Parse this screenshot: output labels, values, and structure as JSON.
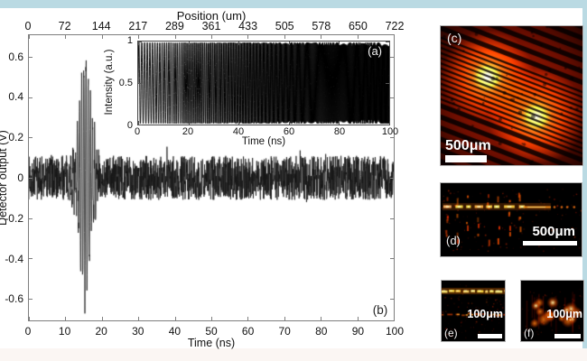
{
  "page": {
    "top_band_color": "#badae3",
    "right_band_color": "#badae3",
    "bottom_band_color": "#fbf6f3"
  },
  "figure": {
    "top_axis": {
      "title": "Position (um)",
      "tick_labels": [
        "0",
        "72",
        "144",
        "217",
        "289",
        "361",
        "433",
        "505",
        "578",
        "650",
        "722"
      ]
    },
    "main_plot": {
      "panel_label": "(b)",
      "xlabel": "Time (ns)",
      "ylabel": "Detector output (V)",
      "x_tick_labels": [
        "0",
        "10",
        "20",
        "30",
        "40",
        "50",
        "60",
        "70",
        "80",
        "90",
        "100"
      ],
      "y_tick_labels": [
        "0.6",
        "0.4",
        "0.2",
        "0",
        "-0.2",
        "-0.4",
        "-0.6"
      ]
    },
    "inset_plot": {
      "panel_label": "(a)",
      "xlabel": "Time (ns)",
      "ylabel": "Intensity (a.u.)",
      "x_tick_labels": [
        "0",
        "20",
        "40",
        "60",
        "80",
        "100"
      ],
      "y_tick_labels": [
        "1",
        "0.5",
        "0"
      ]
    },
    "image_panels": [
      {
        "id": "c",
        "label": "(c)",
        "scale_bar_text": "500μm",
        "description": "diagonal bright fringe stripes with two glowing spots"
      },
      {
        "id": "d",
        "label": "(d)",
        "scale_bar_text": "500μm",
        "description": "bright horizontal interface line with periodic vertical damage dashes"
      },
      {
        "id": "e",
        "label": "(e)",
        "scale_bar_text": "100μm",
        "description": "two horizontal modification lines"
      },
      {
        "id": "f",
        "label": "(f)",
        "scale_bar_text": "100μm",
        "description": "cluster of bright scattering spots"
      }
    ]
  },
  "chart_data": [
    {
      "id": "b",
      "type": "line",
      "panel_label": "(b)",
      "xlabel": "Time (ns)",
      "ylabel": "Detector output (V)",
      "x2label": "Position (um)",
      "xlim": [
        0,
        100
      ],
      "ylim": [
        -0.71,
        0.71
      ],
      "x2lim": [
        0,
        722
      ],
      "x_ticks": [
        0,
        10,
        20,
        30,
        40,
        50,
        60,
        70,
        80,
        90,
        100
      ],
      "y_ticks": [
        0.6,
        0.4,
        0.2,
        0,
        -0.2,
        -0.4,
        -0.6
      ],
      "x2_ticks": [
        0,
        72,
        144,
        217,
        289,
        361,
        433,
        505,
        578,
        650,
        722
      ],
      "grid": false,
      "legend": null,
      "series": [
        {
          "name": "detector output",
          "color": "#151515",
          "description": "broadband noise of about ±0.12 V across 0-100 ns with a high-frequency acoustic echo burst near 15 ns reaching +0.55 V and -0.6 V",
          "noise_peak_v": 0.11,
          "burst": {
            "center_ns": 15.5,
            "sigma_ns": 1.6,
            "peak_v": 0.58,
            "min_v": -0.6,
            "carrier_cycles_per_ns": 1.7
          }
        }
      ],
      "render": {
        "seed": 7,
        "dt_ns": 0.05
      }
    },
    {
      "id": "a",
      "type": "line",
      "panel_label": "(a)",
      "xlabel": "Time (ns)",
      "ylabel": "Intensity (a.u.)",
      "xlim": [
        0,
        100
      ],
      "ylim": [
        0,
        1
      ],
      "x_ticks": [
        0,
        20,
        40,
        60,
        80,
        100
      ],
      "y_ticks": [
        1,
        0.5,
        0
      ],
      "grid": false,
      "legend": null,
      "series": [
        {
          "name": "interference fringes",
          "color": "#000000",
          "description": "chirped fringe oscillation between 0 and 1; fringe frequency increases with time until fringes become unresolved (dark region at later times)",
          "freq_start_cycles_per_ns": 0.85,
          "freq_chirp_cycles_per_ns2": 0.025
        }
      ]
    }
  ],
  "panels_render": {
    "c": {
      "seed": 11,
      "stripe_angle_deg": 21
    },
    "d": {
      "seed": 23
    },
    "e": {
      "seed": 31
    },
    "f": {
      "seed": 41
    }
  },
  "colors": {
    "plot_line": "#151515",
    "axis": "#7e7e7e",
    "fluorescence_dim": "#6e0e00",
    "fluorescence_hot": "#ff5a00",
    "fluorescence_bright": "#ffe6a0"
  }
}
